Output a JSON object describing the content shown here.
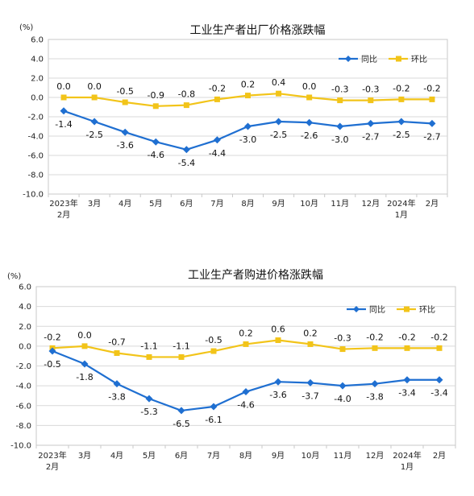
{
  "chart_data": [
    {
      "type": "line",
      "title": "工业生产者出厂价格涨跌幅",
      "y_unit": "(%)",
      "ylim": [
        -10.0,
        6.0
      ],
      "ytick_labels": [
        "6.0",
        "4.0",
        "2.0",
        "0.0",
        "-2.0",
        "-4.0",
        "-6.0",
        "-8.0",
        "-10.0"
      ],
      "categories": [
        {
          "line1": "2023年",
          "line2": "2月"
        },
        {
          "line1": "3月",
          "line2": ""
        },
        {
          "line1": "4月",
          "line2": ""
        },
        {
          "line1": "5月",
          "line2": ""
        },
        {
          "line1": "6月",
          "line2": ""
        },
        {
          "line1": "7月",
          "line2": ""
        },
        {
          "line1": "8月",
          "line2": ""
        },
        {
          "line1": "9月",
          "line2": ""
        },
        {
          "line1": "10月",
          "line2": ""
        },
        {
          "line1": "11月",
          "line2": ""
        },
        {
          "line1": "12月",
          "line2": ""
        },
        {
          "line1": "2024年",
          "line2": "1月"
        },
        {
          "line1": "2月",
          "line2": ""
        }
      ],
      "grid": "horizontal",
      "legend_position": "top-right",
      "series": [
        {
          "name": "同比",
          "color": "#1f6fd1",
          "marker": "diamond",
          "values": [
            -1.4,
            -2.5,
            -3.6,
            -4.6,
            -5.4,
            -4.4,
            -3.0,
            -2.5,
            -2.6,
            -3.0,
            -2.7,
            -2.5,
            -2.7
          ],
          "labels": [
            "-1.4",
            "-2.5",
            "-3.6",
            "-4.6",
            "-5.4",
            "-4.4",
            "-3.0",
            "-2.5",
            "-2.6",
            "-3.0",
            "-2.7",
            "-2.5",
            "-2.7"
          ]
        },
        {
          "name": "环比",
          "color": "#f2c419",
          "marker": "square",
          "values": [
            0.0,
            0.0,
            -0.5,
            -0.9,
            -0.8,
            -0.2,
            0.2,
            0.4,
            0.0,
            -0.3,
            -0.3,
            -0.2,
            -0.2
          ],
          "labels": [
            "0.0",
            "0.0",
            "-0.5",
            "-0.9",
            "-0.8",
            "-0.2",
            "0.2",
            "0.4",
            "0.0",
            "-0.3",
            "-0.3",
            "-0.2",
            "-0.2"
          ]
        }
      ]
    },
    {
      "type": "line",
      "title": "工业生产者购进价格涨跌幅",
      "y_unit": "(%)",
      "ylim": [
        -10.0,
        6.0
      ],
      "ytick_labels": [
        "6.0",
        "4.0",
        "2.0",
        "0.0",
        "-2.0",
        "-4.0",
        "-6.0",
        "-8.0",
        "-10.0"
      ],
      "categories": [
        {
          "line1": "2023年",
          "line2": "2月"
        },
        {
          "line1": "3月",
          "line2": ""
        },
        {
          "line1": "4月",
          "line2": ""
        },
        {
          "line1": "5月",
          "line2": ""
        },
        {
          "line1": "6月",
          "line2": ""
        },
        {
          "line1": "7月",
          "line2": ""
        },
        {
          "line1": "8月",
          "line2": ""
        },
        {
          "line1": "9月",
          "line2": ""
        },
        {
          "line1": "10月",
          "line2": ""
        },
        {
          "line1": "11月",
          "line2": ""
        },
        {
          "line1": "12月",
          "line2": ""
        },
        {
          "line1": "2024年",
          "line2": "1月"
        },
        {
          "line1": "2月",
          "line2": ""
        }
      ],
      "grid": "horizontal",
      "legend_position": "top-right",
      "series": [
        {
          "name": "同比",
          "color": "#1f6fd1",
          "marker": "diamond",
          "values": [
            -0.5,
            -1.8,
            -3.8,
            -5.3,
            -6.5,
            -6.1,
            -4.6,
            -3.6,
            -3.7,
            -4.0,
            -3.8,
            -3.4,
            -3.4
          ],
          "labels": [
            "-0.5",
            "-1.8",
            "-3.8",
            "-5.3",
            "-6.5",
            "-6.1",
            "-4.6",
            "-3.6",
            "-3.7",
            "-4.0",
            "-3.8",
            "-3.4",
            "-3.4"
          ]
        },
        {
          "name": "环比",
          "color": "#f2c419",
          "marker": "square",
          "values": [
            -0.2,
            0.0,
            -0.7,
            -1.1,
            -1.1,
            -0.5,
            0.2,
            0.6,
            0.2,
            -0.3,
            -0.2,
            -0.2,
            -0.2
          ],
          "labels": [
            "-0.2",
            "0.0",
            "-0.7",
            "-1.1",
            "-1.1",
            "-0.5",
            "0.2",
            "0.6",
            "0.2",
            "-0.3",
            "-0.2",
            "-0.2",
            "-0.2"
          ]
        }
      ]
    }
  ]
}
